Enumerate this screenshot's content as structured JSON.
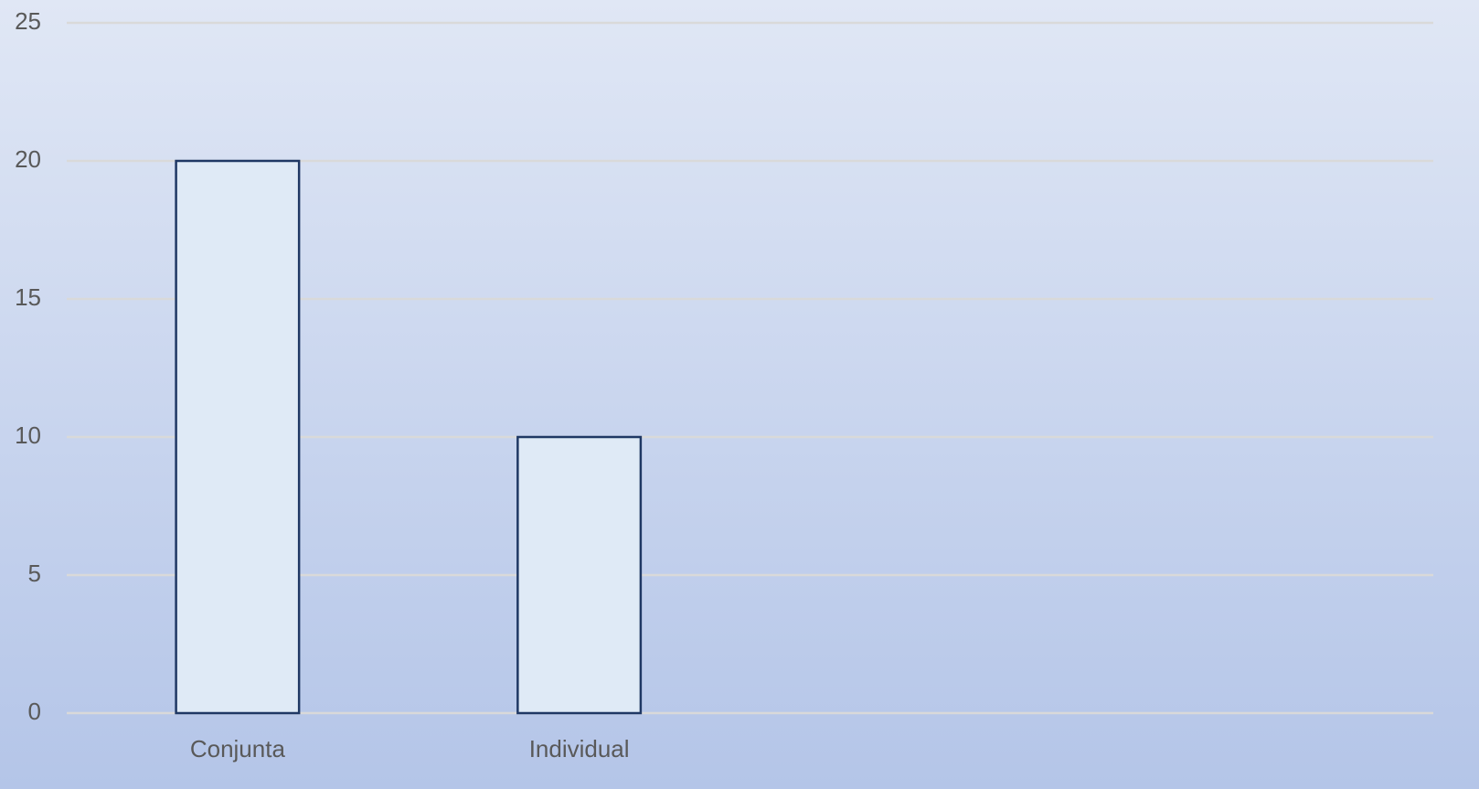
{
  "chart_data": {
    "type": "bar",
    "categories": [
      "Conjunta",
      "Individual",
      null,
      null
    ],
    "values": [
      20,
      10,
      null,
      null
    ],
    "color": "#dfeaf6",
    "edgecolor": "#1f3864",
    "ylim": [
      0,
      25
    ],
    "yticks": [
      0,
      5,
      10,
      15,
      20,
      25
    ],
    "grid": true
  }
}
